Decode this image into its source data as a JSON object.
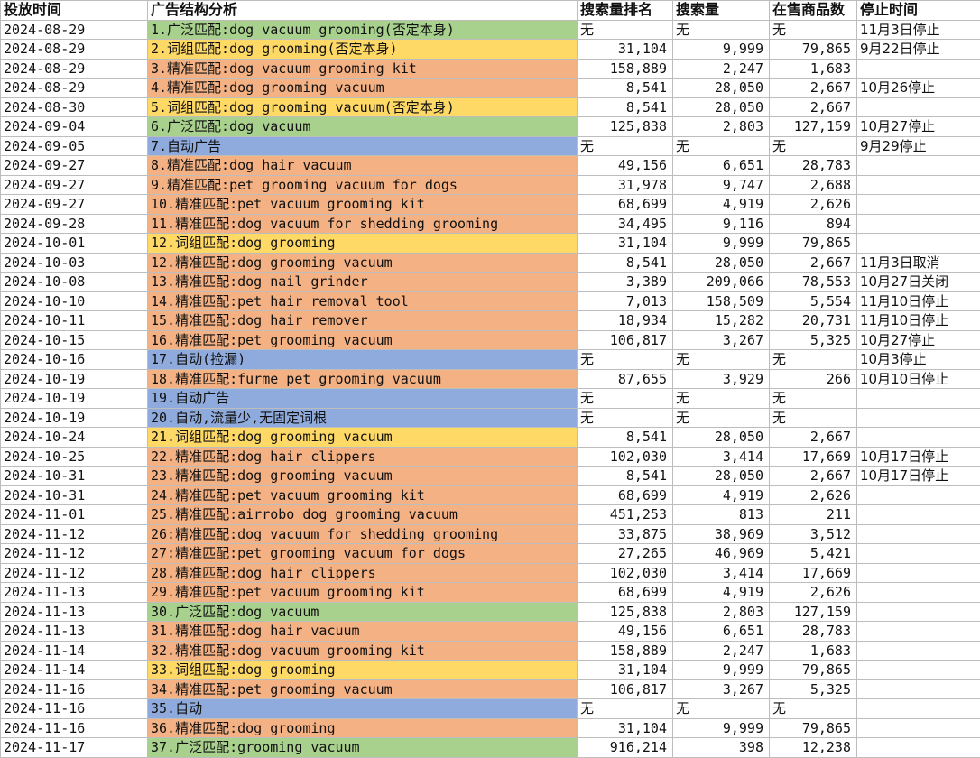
{
  "headers": {
    "date": "投放时间",
    "ad": "广告结构分析",
    "rank": "搜索量排名",
    "volume": "搜索量",
    "goods": "在售商品数",
    "stop": "停止时间"
  },
  "category_colors": {
    "broad": "#a9d18e",
    "phrase": "#ffd966",
    "exact": "#f4b183",
    "auto": "#8faadc"
  },
  "rows": [
    {
      "date": "2024-08-29",
      "ad": "1.广泛匹配:dog vacuum grooming(否定本身)",
      "cat": "broad",
      "rank": "无",
      "volume": "无",
      "goods": "无",
      "stop": "11月3日停止"
    },
    {
      "date": "2024-08-29",
      "ad": "2.词组匹配:dog grooming(否定本身)",
      "cat": "phrase",
      "rank": "31,104",
      "volume": "9,999",
      "goods": "79,865",
      "stop": "9月22日停止"
    },
    {
      "date": "2024-08-29",
      "ad": "3.精准匹配:dog vacuum grooming kit",
      "cat": "exact",
      "rank": "158,889",
      "volume": "2,247",
      "goods": "1,683",
      "stop": ""
    },
    {
      "date": "2024-08-29",
      "ad": "4.精准匹配:dog grooming vacuum",
      "cat": "exact",
      "rank": "8,541",
      "volume": "28,050",
      "goods": "2,667",
      "stop": "10月26停止"
    },
    {
      "date": "2024-08-30",
      "ad": "5.词组匹配:dog grooming vacuum(否定本身)",
      "cat": "phrase",
      "rank": "8,541",
      "volume": "28,050",
      "goods": "2,667",
      "stop": ""
    },
    {
      "date": "2024-09-04",
      "ad": "6.广泛匹配:dog vacuum",
      "cat": "broad",
      "rank": "125,838",
      "volume": "2,803",
      "goods": "127,159",
      "stop": "10月27停止"
    },
    {
      "date": "2024-09-05",
      "ad": "7.自动广告",
      "cat": "auto",
      "rank": "无",
      "volume": "无",
      "goods": "无",
      "stop": "9月29停止"
    },
    {
      "date": "2024-09-27",
      "ad": "8.精准匹配:dog hair vacuum",
      "cat": "exact",
      "rank": "49,156",
      "volume": "6,651",
      "goods": "28,783",
      "stop": ""
    },
    {
      "date": "2024-09-27",
      "ad": "9.精准匹配:pet grooming vacuum for dogs",
      "cat": "exact",
      "rank": "31,978",
      "volume": "9,747",
      "goods": "2,688",
      "stop": ""
    },
    {
      "date": "2024-09-27",
      "ad": "10.精准匹配:pet vacuum grooming kit",
      "cat": "exact",
      "rank": "68,699",
      "volume": "4,919",
      "goods": "2,626",
      "stop": ""
    },
    {
      "date": "2024-09-28",
      "ad": "11.精准匹配:dog vacuum for shedding grooming",
      "cat": "exact",
      "rank": "34,495",
      "volume": "9,116",
      "goods": "894",
      "stop": ""
    },
    {
      "date": "2024-10-01",
      "ad": "12.词组匹配:dog grooming",
      "cat": "phrase",
      "rank": "31,104",
      "volume": "9,999",
      "goods": "79,865",
      "stop": ""
    },
    {
      "date": "2024-10-03",
      "ad": "12.精准匹配:dog grooming vacuum",
      "cat": "exact",
      "rank": "8,541",
      "volume": "28,050",
      "goods": "2,667",
      "stop": "11月3日取消"
    },
    {
      "date": "2024-10-08",
      "ad": "13.精准匹配:dog nail grinder",
      "cat": "exact",
      "rank": "3,389",
      "volume": "209,066",
      "goods": "78,553",
      "stop": "10月27日关闭"
    },
    {
      "date": "2024-10-10",
      "ad": "14.精准匹配:pet hair removal tool",
      "cat": "exact",
      "rank": "7,013",
      "volume": "158,509",
      "goods": "5,554",
      "stop": "11月10日停止"
    },
    {
      "date": "2024-10-11",
      "ad": "15.精准匹配:dog hair remover",
      "cat": "exact",
      "rank": "18,934",
      "volume": "15,282",
      "goods": "20,731",
      "stop": "11月10日停止"
    },
    {
      "date": "2024-10-15",
      "ad": "16.精准匹配:pet grooming vacuum",
      "cat": "exact",
      "rank": "106,817",
      "volume": "3,267",
      "goods": "5,325",
      "stop": "10月27停止"
    },
    {
      "date": "2024-10-16",
      "ad": "17.自动(捡漏)",
      "cat": "auto",
      "rank": "无",
      "volume": "无",
      "goods": "无",
      "stop": "10月3停止"
    },
    {
      "date": "2024-10-19",
      "ad": "18.精准匹配:furme pet grooming vacuum",
      "cat": "exact",
      "rank": "87,655",
      "volume": "3,929",
      "goods": "266",
      "stop": "10月10日停止"
    },
    {
      "date": "2024-10-19",
      "ad": "19.自动广告",
      "cat": "auto",
      "rank": "无",
      "volume": "无",
      "goods": "无",
      "stop": ""
    },
    {
      "date": "2024-10-19",
      "ad": "20.自动,流量少,无固定词根",
      "cat": "auto",
      "rank": "无",
      "volume": "无",
      "goods": "无",
      "stop": ""
    },
    {
      "date": "2024-10-24",
      "ad": "21.词组匹配:dog grooming vacuum",
      "cat": "phrase",
      "rank": "8,541",
      "volume": "28,050",
      "goods": "2,667",
      "stop": ""
    },
    {
      "date": "2024-10-25",
      "ad": "22.精准匹配:dog hair clippers",
      "cat": "exact",
      "rank": "102,030",
      "volume": "3,414",
      "goods": "17,669",
      "stop": "10月17日停止"
    },
    {
      "date": "2024-10-31",
      "ad": "23.精准匹配:dog grooming vacuum",
      "cat": "exact",
      "rank": "8,541",
      "volume": "28,050",
      "goods": "2,667",
      "stop": "10月17日停止"
    },
    {
      "date": "2024-10-31",
      "ad": "24.精准匹配:pet vacuum grooming kit",
      "cat": "exact",
      "rank": "68,699",
      "volume": "4,919",
      "goods": "2,626",
      "stop": ""
    },
    {
      "date": "2024-11-01",
      "ad": "25.精准匹配:airrobo dog grooming vacuum",
      "cat": "exact",
      "rank": "451,253",
      "volume": "813",
      "goods": "211",
      "stop": ""
    },
    {
      "date": "2024-11-12",
      "ad": "26:精准匹配:dog vacuum for shedding grooming",
      "cat": "exact",
      "rank": "33,875",
      "volume": "38,969",
      "goods": "3,512",
      "stop": ""
    },
    {
      "date": "2024-11-12",
      "ad": "27:精准匹配:pet grooming vacuum for dogs",
      "cat": "exact",
      "rank": "27,265",
      "volume": "46,969",
      "goods": "5,421",
      "stop": ""
    },
    {
      "date": "2024-11-12",
      "ad": "28.精准匹配:dog hair clippers",
      "cat": "exact",
      "rank": "102,030",
      "volume": "3,414",
      "goods": "17,669",
      "stop": ""
    },
    {
      "date": "2024-11-13",
      "ad": "29.精准匹配:pet vacuum grooming kit",
      "cat": "exact",
      "rank": "68,699",
      "volume": "4,919",
      "goods": "2,626",
      "stop": ""
    },
    {
      "date": "2024-11-13",
      "ad": "30.广泛匹配:dog vacuum",
      "cat": "broad",
      "rank": "125,838",
      "volume": "2,803",
      "goods": "127,159",
      "stop": ""
    },
    {
      "date": "2024-11-13",
      "ad": "31.精准匹配:dog hair vacuum",
      "cat": "exact",
      "rank": "49,156",
      "volume": "6,651",
      "goods": "28,783",
      "stop": ""
    },
    {
      "date": "2024-11-14",
      "ad": "32.精准匹配:dog vacuum grooming kit",
      "cat": "exact",
      "rank": "158,889",
      "volume": "2,247",
      "goods": "1,683",
      "stop": ""
    },
    {
      "date": "2024-11-14",
      "ad": "33.词组匹配:dog grooming",
      "cat": "phrase",
      "rank": "31,104",
      "volume": "9,999",
      "goods": "79,865",
      "stop": ""
    },
    {
      "date": "2024-11-16",
      "ad": "34.精准匹配:pet grooming vacuum",
      "cat": "exact",
      "rank": "106,817",
      "volume": "3,267",
      "goods": "5,325",
      "stop": ""
    },
    {
      "date": "2024-11-16",
      "ad": "35.自动",
      "cat": "auto",
      "rank": "无",
      "volume": "无",
      "goods": "无",
      "stop": ""
    },
    {
      "date": "2024-11-16",
      "ad": "36.精准匹配:dog grooming",
      "cat": "exact",
      "rank": "31,104",
      "volume": "9,999",
      "goods": "79,865",
      "stop": ""
    },
    {
      "date": "2024-11-17",
      "ad": "37.广泛匹配:grooming vacuum",
      "cat": "broad",
      "rank": "916,214",
      "volume": "398",
      "goods": "12,238",
      "stop": ""
    }
  ]
}
